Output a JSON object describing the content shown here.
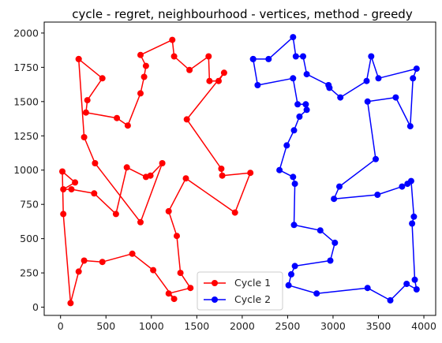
{
  "chart_data": {
    "type": "line",
    "title": "cycle - regret, neighbourhood - vertices, method - greedy",
    "xlabel": "",
    "ylabel": "",
    "xlim": [
      -180,
      4130
    ],
    "ylim": [
      -60,
      2080
    ],
    "xticks": [
      0,
      500,
      1000,
      1500,
      2000,
      2500,
      3000,
      3500,
      4000
    ],
    "yticks": [
      0,
      250,
      500,
      750,
      1000,
      1250,
      1500,
      1750,
      2000
    ],
    "grid": false,
    "legend_position": "lower-center",
    "series": [
      {
        "name": "Cycle 1",
        "color": "#ff0000",
        "points": [
          [
            200,
            1810
          ],
          [
            460,
            1670
          ],
          [
            295,
            1510
          ],
          [
            280,
            1420
          ],
          [
            620,
            1380
          ],
          [
            740,
            1325
          ],
          [
            880,
            1560
          ],
          [
            920,
            1680
          ],
          [
            940,
            1760
          ],
          [
            880,
            1840
          ],
          [
            1230,
            1950
          ],
          [
            1250,
            1830
          ],
          [
            1420,
            1730
          ],
          [
            1630,
            1830
          ],
          [
            1640,
            1650
          ],
          [
            1740,
            1650
          ],
          [
            1800,
            1710
          ],
          [
            1390,
            1370
          ],
          [
            1770,
            1010
          ],
          [
            1780,
            960
          ],
          [
            2090,
            980
          ],
          [
            1920,
            690
          ],
          [
            1380,
            940
          ],
          [
            1190,
            700
          ],
          [
            1280,
            520
          ],
          [
            1320,
            250
          ],
          [
            1430,
            140
          ],
          [
            1190,
            100
          ],
          [
            1250,
            60
          ],
          [
            1020,
            270
          ],
          [
            790,
            390
          ],
          [
            460,
            330
          ],
          [
            260,
            340
          ],
          [
            200,
            260
          ],
          [
            110,
            30
          ],
          [
            30,
            680
          ],
          [
            20,
            990
          ],
          [
            160,
            910
          ],
          [
            30,
            860
          ],
          [
            120,
            860
          ],
          [
            370,
            830
          ],
          [
            610,
            680
          ],
          [
            730,
            1020
          ],
          [
            940,
            950
          ],
          [
            990,
            960
          ],
          [
            1120,
            1050
          ],
          [
            880,
            620
          ],
          [
            380,
            1050
          ],
          [
            260,
            1240
          ],
          [
            200,
            1810
          ]
        ]
      },
      {
        "name": "Cycle 2",
        "color": "#0000ff",
        "points": [
          [
            2120,
            1810
          ],
          [
            2290,
            1810
          ],
          [
            2560,
            1970
          ],
          [
            2590,
            1830
          ],
          [
            2670,
            1830
          ],
          [
            2710,
            1700
          ],
          [
            2950,
            1620
          ],
          [
            2960,
            1600
          ],
          [
            3080,
            1530
          ],
          [
            3370,
            1650
          ],
          [
            3420,
            1830
          ],
          [
            3500,
            1670
          ],
          [
            3920,
            1740
          ],
          [
            3880,
            1670
          ],
          [
            3850,
            1320
          ],
          [
            3690,
            1530
          ],
          [
            3380,
            1500
          ],
          [
            3470,
            1080
          ],
          [
            3070,
            880
          ],
          [
            3010,
            790
          ],
          [
            3490,
            820
          ],
          [
            3760,
            880
          ],
          [
            3820,
            900
          ],
          [
            3860,
            920
          ],
          [
            3890,
            660
          ],
          [
            3870,
            610
          ],
          [
            3900,
            200
          ],
          [
            3920,
            130
          ],
          [
            3810,
            170
          ],
          [
            3630,
            50
          ],
          [
            3380,
            140
          ],
          [
            2820,
            100
          ],
          [
            2510,
            160
          ],
          [
            2540,
            240
          ],
          [
            2580,
            300
          ],
          [
            2970,
            340
          ],
          [
            3020,
            470
          ],
          [
            2860,
            560
          ],
          [
            2570,
            600
          ],
          [
            2580,
            900
          ],
          [
            2560,
            950
          ],
          [
            2410,
            1000
          ],
          [
            2490,
            1180
          ],
          [
            2570,
            1290
          ],
          [
            2630,
            1390
          ],
          [
            2710,
            1440
          ],
          [
            2700,
            1480
          ],
          [
            2610,
            1480
          ],
          [
            2560,
            1670
          ],
          [
            2170,
            1620
          ],
          [
            2120,
            1810
          ]
        ]
      }
    ]
  }
}
